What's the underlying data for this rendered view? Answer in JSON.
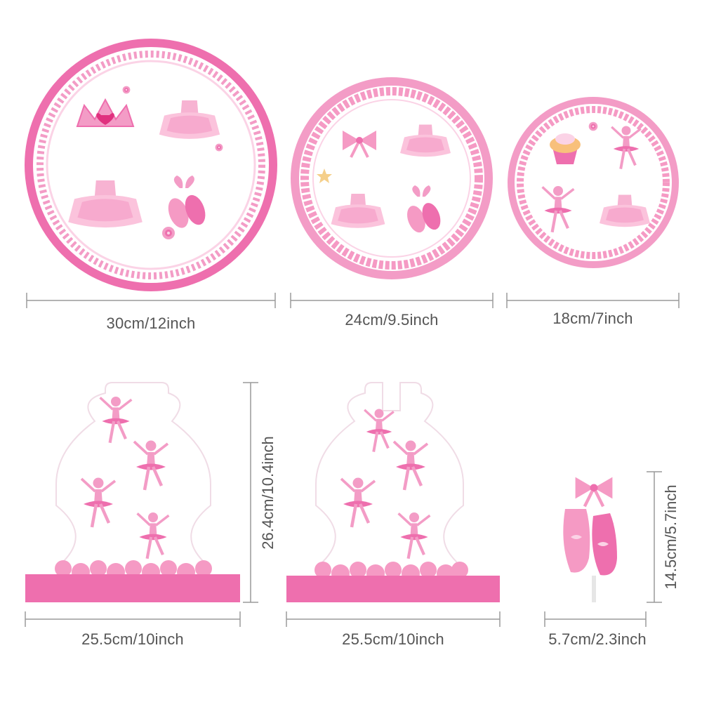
{
  "colors": {
    "pink_dark": "#ee6fae",
    "pink_mid": "#f39cc6",
    "pink_light": "#fbd3e6",
    "dim_line": "#9a9a9a",
    "dim_text": "#555555"
  },
  "dimensions": {
    "plate_large": "30cm/12inch",
    "plate_medium": "24cm/9.5inch",
    "plate_small": "18cm/7inch",
    "centerpiece_left_width": "25.5cm/10inch",
    "centerpiece_right_width": "25.5cm/10inch",
    "centerpiece_height": "26.4cm/10.4inch",
    "topper_width": "5.7cm/2.3inch",
    "topper_height": "14.5cm/5.7inch"
  },
  "icons": {
    "plate_large": [
      "tiara-icon",
      "tutu-dress-icon",
      "ballet-shoes-icon",
      "rose-icon"
    ],
    "plate_medium": [
      "bow-icon",
      "tutu-dress-icon",
      "ballet-shoes-icon"
    ],
    "plate_small": [
      "cupcake-icon",
      "ballerina-icon",
      "tutu-dress-icon"
    ],
    "centerpiece": [
      "ballerina-icon",
      "rose-border-icon"
    ],
    "topper": [
      "bow-icon",
      "ballet-shoes-icon"
    ]
  }
}
